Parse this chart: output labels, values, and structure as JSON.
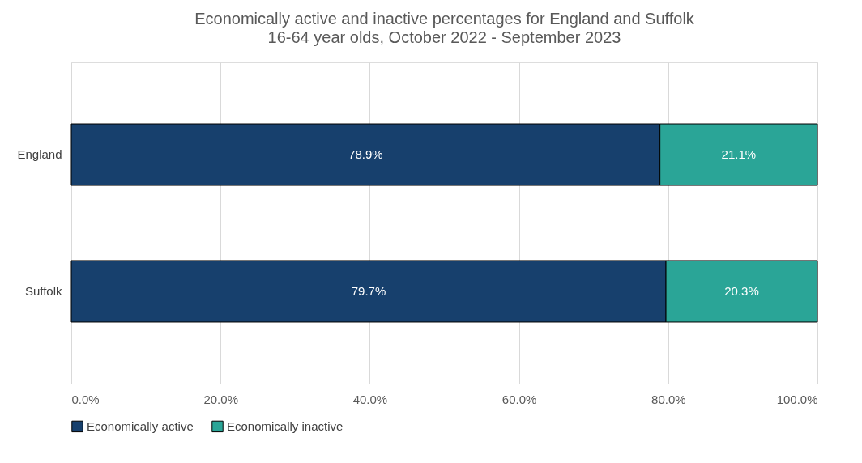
{
  "chart_data": {
    "type": "bar",
    "orientation": "horizontal",
    "stacked": true,
    "title": "Economically active and inactive percentages for England and Suffolk",
    "subtitle": "16-64 year olds, October 2022 - September 2023",
    "categories": [
      "England",
      "Suffolk"
    ],
    "series": [
      {
        "name": "Economically active",
        "color": "#17406d",
        "values": [
          78.9,
          79.7
        ],
        "value_labels": [
          "78.9%",
          "79.7%"
        ]
      },
      {
        "name": "Economically inactive",
        "color": "#2aa597",
        "values": [
          21.1,
          20.3
        ],
        "value_labels": [
          "21.1%",
          "20.3%"
        ]
      }
    ],
    "xlim": [
      0,
      100
    ],
    "xticks": [
      {
        "value": 0,
        "label": "0.0%"
      },
      {
        "value": 20,
        "label": "20.0%"
      },
      {
        "value": 40,
        "label": "40.0%"
      },
      {
        "value": 60,
        "label": "60.0%"
      },
      {
        "value": 80,
        "label": "80.0%"
      },
      {
        "value": 100,
        "label": "100.0%"
      }
    ],
    "grid": "x",
    "legend": "bottom"
  }
}
